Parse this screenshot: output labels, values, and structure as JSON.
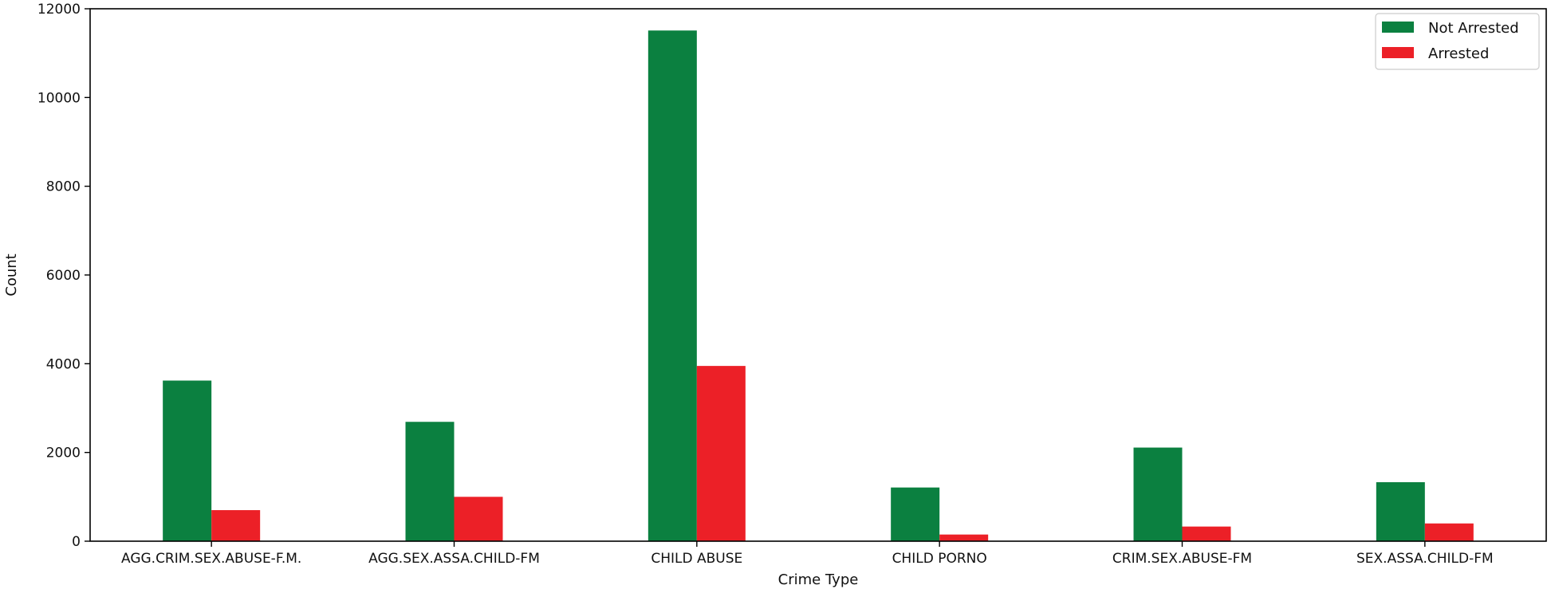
{
  "chart_data": {
    "type": "bar",
    "title": "",
    "xlabel": "Crime Type",
    "ylabel": "Count",
    "categories": [
      "AGG.CRIM.SEX.ABUSE-F.M.",
      "AGG.SEX.ASSA.CHILD-FM",
      "CHILD ABUSE",
      "CHILD PORNO",
      "CRIM.SEX.ABUSE-FM",
      "SEX.ASSA.CHILD-FM"
    ],
    "series": [
      {
        "name": "Not Arrested",
        "color": "#0b8040",
        "values": [
          3620,
          2690,
          11510,
          1210,
          2110,
          1330
        ]
      },
      {
        "name": "Arrested",
        "color": "#ec2027",
        "values": [
          700,
          1000,
          3950,
          150,
          330,
          400
        ]
      }
    ],
    "ylim": [
      0,
      12000
    ],
    "yticks": [
      0,
      2000,
      4000,
      6000,
      8000,
      10000,
      12000
    ],
    "grid": false,
    "legend_position": "top-right"
  }
}
